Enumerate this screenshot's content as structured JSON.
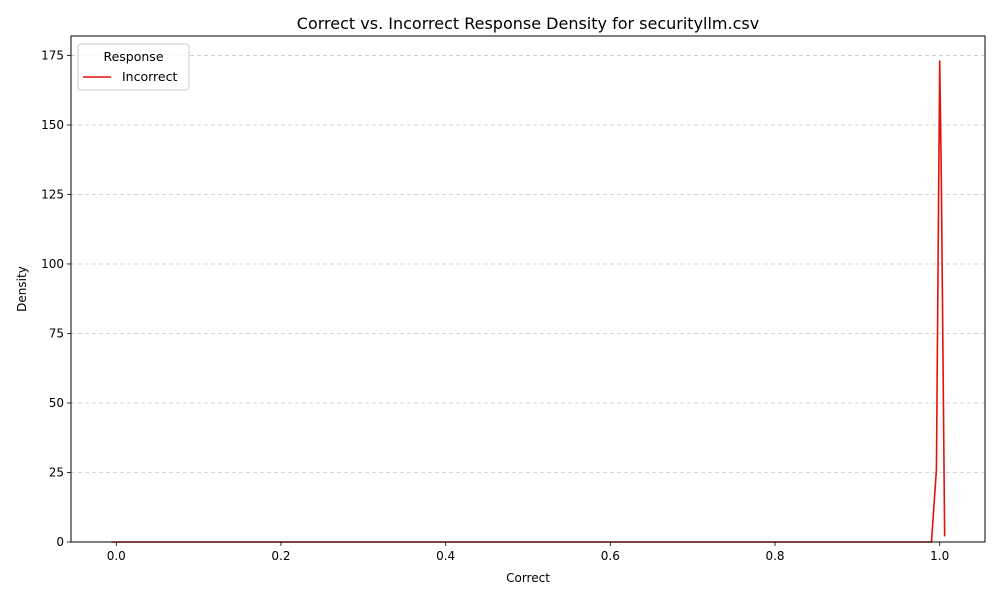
{
  "chart_data": {
    "type": "line",
    "title": "Correct vs. Incorrect Response Density for securityllm.csv",
    "xlabel": "Correct",
    "ylabel": "Density",
    "xlim": [
      -0.055,
      1.055
    ],
    "ylim": [
      0,
      182
    ],
    "xticks": [
      0.0,
      0.2,
      0.4,
      0.6,
      0.8,
      1.0
    ],
    "xtick_labels": [
      "0.0",
      "0.2",
      "0.4",
      "0.6",
      "0.8",
      "1.0"
    ],
    "yticks": [
      0,
      25,
      50,
      75,
      100,
      125,
      150,
      175
    ],
    "ytick_labels": [
      "0",
      "25",
      "50",
      "75",
      "100",
      "125",
      "150",
      "175"
    ],
    "grid": "y-dashed",
    "legend": {
      "title": "Response",
      "placement": "top-left"
    },
    "series": [
      {
        "name": "Incorrect",
        "color": "#e3120b",
        "x": [
          -0.006,
          0.2,
          0.4,
          0.6,
          0.8,
          0.99,
          0.996,
          1.0,
          1.002,
          1.006
        ],
        "y": [
          0,
          0,
          0,
          0,
          0,
          0,
          26,
          173,
          130,
          2
        ]
      }
    ]
  }
}
